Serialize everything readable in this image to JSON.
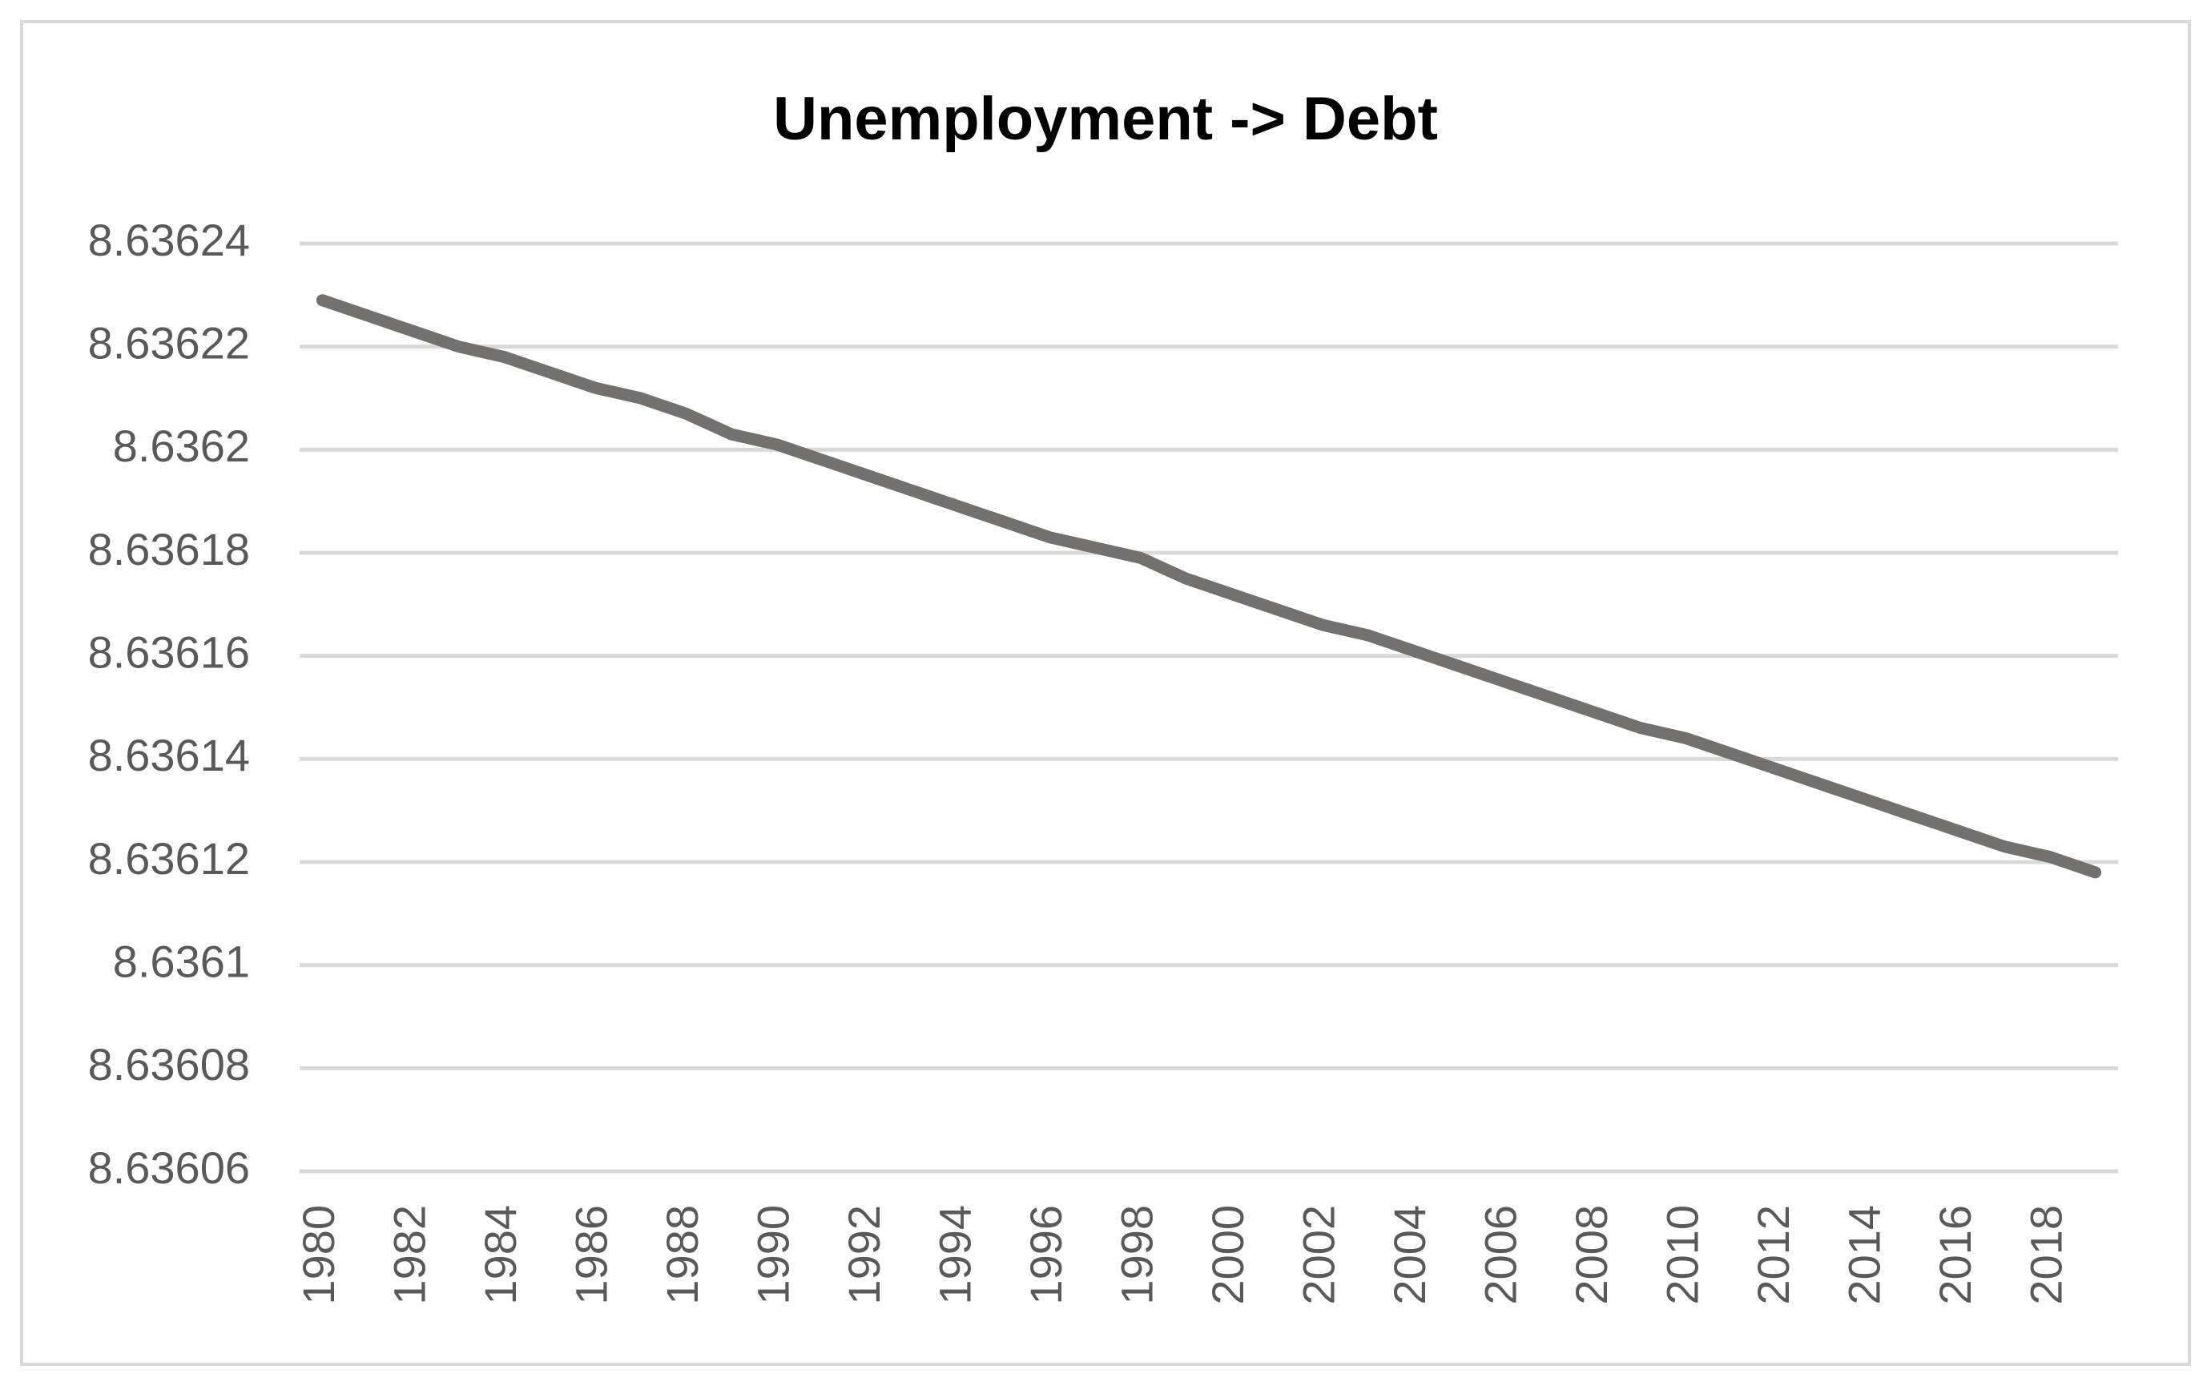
{
  "chart_data": {
    "type": "line",
    "title": "Unemployment -> Debt",
    "categories": [
      1980,
      null,
      1982,
      null,
      1984,
      null,
      1986,
      null,
      1988,
      null,
      1990,
      null,
      1992,
      null,
      1994,
      null,
      1996,
      null,
      1998,
      null,
      2000,
      null,
      2002,
      null,
      2004,
      null,
      2006,
      null,
      2008,
      null,
      2010,
      null,
      2012,
      null,
      2014,
      null,
      2016,
      null,
      2018,
      null
    ],
    "series": [
      {
        "color": "#737070",
        "values": [
          8.636229,
          8.636226,
          8.636223,
          8.63622,
          8.636218,
          8.636215,
          8.636212,
          8.63621,
          8.636207,
          8.636203,
          8.636201,
          8.636198,
          8.636195,
          8.636192,
          8.636189,
          8.636186,
          8.636183,
          8.636181,
          8.636179,
          8.636175,
          8.636172,
          8.636169,
          8.636166,
          8.636164,
          8.636161,
          8.636158,
          8.636155,
          8.636152,
          8.636149,
          8.636146,
          8.636144,
          8.636141,
          8.636138,
          8.636135,
          8.636132,
          8.636129,
          8.636126,
          8.636123,
          8.636121,
          8.636118
        ]
      }
    ],
    "ylim": [
      8.63606,
      8.63624
    ],
    "yticks": [
      8.63606,
      8.63608,
      8.6361,
      8.63612,
      8.63614,
      8.63616,
      8.63618,
      8.6362,
      8.63622,
      8.63624
    ],
    "grid": true
  }
}
